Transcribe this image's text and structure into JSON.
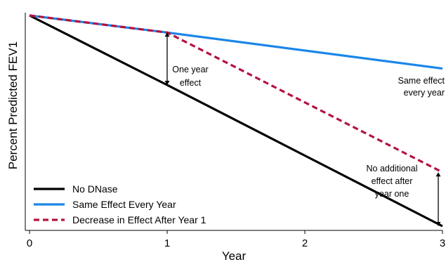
{
  "chart_data": {
    "type": "line",
    "title": "",
    "xlabel": "Year",
    "ylabel": "Percent Predicted FEV1",
    "x_ticks": [
      "0",
      "1",
      "2",
      "3"
    ],
    "xlim": [
      0,
      3
    ],
    "ylim": [
      0,
      1
    ],
    "y_ticks_shown": false,
    "grid": false,
    "legend_position": "bottom-left",
    "series": [
      {
        "name": "No DNase",
        "color": "#000000",
        "style": "solid",
        "x": [
          0,
          1,
          2,
          3
        ],
        "y": [
          1.0,
          0.67,
          0.335,
          0.0
        ]
      },
      {
        "name": "Same Effect Every Year",
        "color": "#1a86e8",
        "style": "solid",
        "x": [
          0,
          1,
          3
        ],
        "y": [
          1.0,
          0.919,
          0.748
        ]
      },
      {
        "name": "Decrease in Effect After Year 1",
        "color": "#b5123f",
        "style": "dashed",
        "x": [
          0,
          1,
          3
        ],
        "y": [
          1.0,
          0.919,
          0.256
        ]
      }
    ],
    "annotations": [
      {
        "text_lines": [
          "One year",
          "effect"
        ],
        "x": 1,
        "y_from": 0.67,
        "y_to": 0.919
      },
      {
        "text_lines": [
          "Same effect",
          "every year"
        ],
        "x": 3,
        "y": 0.62
      },
      {
        "text_lines": [
          "No additional",
          "effect after",
          "year one"
        ],
        "x": 3,
        "y_from": 0.0,
        "y_to": 0.256
      }
    ]
  }
}
